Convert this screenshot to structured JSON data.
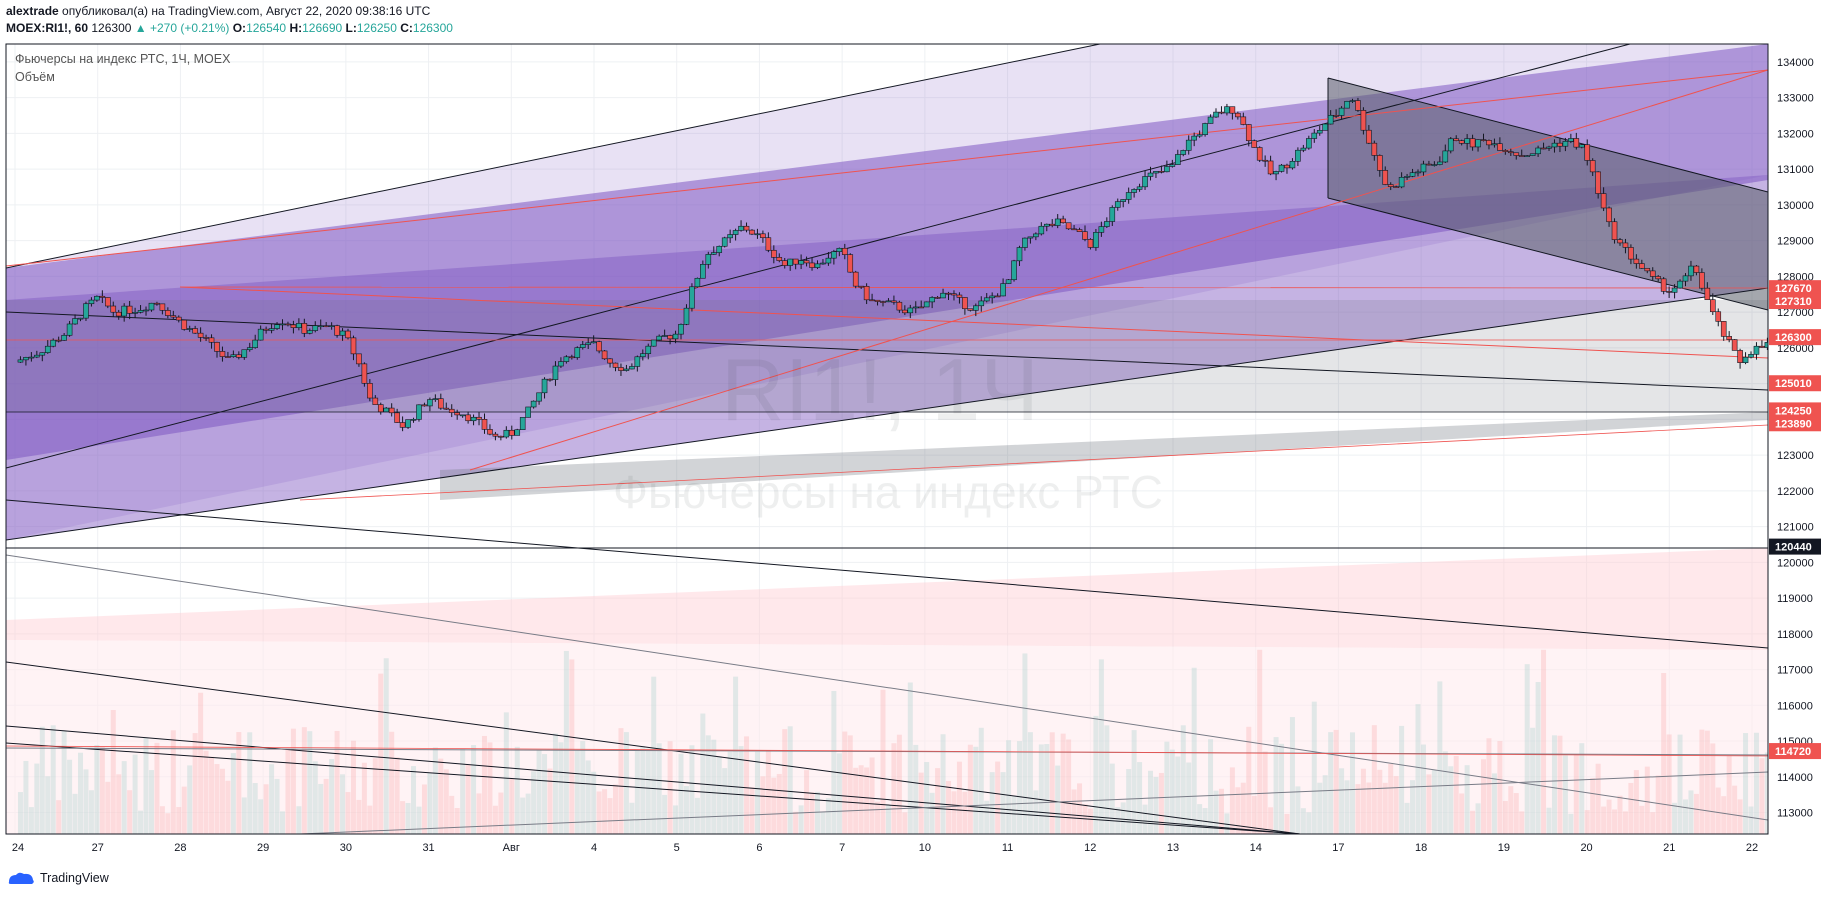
{
  "header": {
    "user": "alextrade",
    "published_text": "опубликовал(а) на TradingView.com, Август 22, 2020 09:38:16 UTC",
    "symbol_interval": "MOEX:RI1!, 60",
    "last": "126300",
    "change": "▲ +270 (+0.21%)",
    "o_label": "O:",
    "o_value": "126540",
    "h_label": "H:",
    "h_value": "126690",
    "l_label": "L:",
    "l_value": "126250",
    "c_label": "C:",
    "c_value": "126300"
  },
  "legend": {
    "series": "Фьючерсы на индекс РТС, 1Ч, MOEX",
    "volume": "Объём"
  },
  "watermark": {
    "symbol": "RI1!, 1Ч",
    "name": "Фьючерсы на индекс РТС"
  },
  "footer": {
    "brand": "TradingView"
  },
  "colors": {
    "up": "#26a69a",
    "down": "#ef5350",
    "purple": "#6f4bbf",
    "price_box": "#ef5350",
    "black_box": "#131722"
  },
  "chart_data": {
    "type": "candlestick",
    "ylim": [
      112400,
      134500
    ],
    "y_ticks": [
      113000,
      114000,
      115000,
      116000,
      117000,
      118000,
      119000,
      120000,
      121000,
      122000,
      123000,
      124000,
      125000,
      126000,
      127000,
      128000,
      129000,
      130000,
      131000,
      132000,
      133000,
      134000
    ],
    "x_ticks": [
      "24",
      "27",
      "28",
      "29",
      "30",
      "31",
      "Авг",
      "4",
      "5",
      "6",
      "7",
      "10",
      "11",
      "12",
      "13",
      "14",
      "17",
      "18",
      "19",
      "20",
      "21",
      "22"
    ],
    "price_labels": [
      {
        "value": 127670,
        "label": "127670",
        "style": "red"
      },
      {
        "value": 127310,
        "label": "127310",
        "style": "red"
      },
      {
        "value": 126300,
        "label": "126300",
        "style": "red"
      },
      {
        "value": 125010,
        "label": "125010",
        "style": "red"
      },
      {
        "value": 124250,
        "label": "124250",
        "style": "red"
      },
      {
        "value": 123890,
        "label": "123890",
        "style": "red"
      },
      {
        "value": 120440,
        "label": "120440",
        "style": "black"
      },
      {
        "value": 114720,
        "label": "114720",
        "style": "red"
      }
    ],
    "close_path": [
      [
        0,
        125600
      ],
      [
        0.3,
        125900
      ],
      [
        0.6,
        126400
      ],
      [
        0.85,
        127100
      ],
      [
        1,
        127400
      ],
      [
        1.2,
        127000
      ],
      [
        1.5,
        127100
      ],
      [
        1.7,
        127300
      ],
      [
        2,
        126700
      ],
      [
        2.3,
        126200
      ],
      [
        2.6,
        125600
      ],
      [
        2.85,
        126100
      ],
      [
        3,
        126500
      ],
      [
        3.2,
        126800
      ],
      [
        3.5,
        126500
      ],
      [
        3.8,
        126600
      ],
      [
        4,
        126300
      ],
      [
        4.15,
        125600
      ],
      [
        4.3,
        124500
      ],
      [
        4.5,
        124200
      ],
      [
        4.7,
        123800
      ],
      [
        4.85,
        124200
      ],
      [
        5,
        124600
      ],
      [
        5.2,
        124300
      ],
      [
        5.4,
        124200
      ],
      [
        5.6,
        123900
      ],
      [
        5.8,
        123500
      ],
      [
        6,
        123600
      ],
      [
        6.2,
        124200
      ],
      [
        6.4,
        125000
      ],
      [
        6.6,
        125700
      ],
      [
        6.85,
        126000
      ],
      [
        7,
        126100
      ],
      [
        7.2,
        125600
      ],
      [
        7.4,
        125400
      ],
      [
        7.6,
        125900
      ],
      [
        7.85,
        126300
      ],
      [
        8,
        126400
      ],
      [
        8.15,
        127400
      ],
      [
        8.35,
        128600
      ],
      [
        8.6,
        129000
      ],
      [
        8.8,
        129400
      ],
      [
        9,
        129100
      ],
      [
        9.15,
        128700
      ],
      [
        9.3,
        128300
      ],
      [
        9.5,
        128500
      ],
      [
        9.7,
        128300
      ],
      [
        9.85,
        128600
      ],
      [
        10,
        128700
      ],
      [
        10.15,
        127800
      ],
      [
        10.35,
        127300
      ],
      [
        10.6,
        127200
      ],
      [
        10.85,
        127000
      ],
      [
        11,
        127200
      ],
      [
        11.2,
        127600
      ],
      [
        11.4,
        127300
      ],
      [
        11.6,
        127100
      ],
      [
        11.85,
        127500
      ],
      [
        12,
        127800
      ],
      [
        12.15,
        128800
      ],
      [
        12.35,
        129300
      ],
      [
        12.6,
        129500
      ],
      [
        12.85,
        129200
      ],
      [
        13,
        128900
      ],
      [
        13.2,
        129600
      ],
      [
        13.45,
        130400
      ],
      [
        13.7,
        130800
      ],
      [
        13.85,
        130900
      ],
      [
        14,
        131100
      ],
      [
        14.15,
        131700
      ],
      [
        14.35,
        132100
      ],
      [
        14.55,
        132600
      ],
      [
        14.75,
        132700
      ],
      [
        15,
        131500
      ],
      [
        15.2,
        130800
      ],
      [
        15.4,
        131200
      ],
      [
        15.6,
        131700
      ],
      [
        15.85,
        132300
      ],
      [
        16,
        132600
      ],
      [
        16.15,
        133100
      ],
      [
        16.3,
        132200
      ],
      [
        16.45,
        131300
      ],
      [
        16.6,
        130400
      ],
      [
        16.75,
        130700
      ],
      [
        16.9,
        130900
      ],
      [
        17,
        131000
      ],
      [
        17.2,
        131200
      ],
      [
        17.4,
        131900
      ],
      [
        17.6,
        131700
      ],
      [
        17.8,
        131800
      ],
      [
        18,
        131600
      ],
      [
        18.2,
        131400
      ],
      [
        18.4,
        131500
      ],
      [
        18.6,
        131700
      ],
      [
        18.8,
        131800
      ],
      [
        18.95,
        131600
      ],
      [
        19.1,
        130700
      ],
      [
        19.25,
        129500
      ],
      [
        19.4,
        128900
      ],
      [
        19.6,
        128400
      ],
      [
        19.8,
        127900
      ],
      [
        20,
        127600
      ],
      [
        20.15,
        127800
      ],
      [
        20.3,
        128300
      ],
      [
        20.45,
        127400
      ],
      [
        20.55,
        126800
      ],
      [
        20.7,
        126200
      ],
      [
        20.85,
        125600
      ],
      [
        20.95,
        125900
      ],
      [
        21.1,
        126000
      ],
      [
        21.3,
        126200
      ],
      [
        21.4,
        126300
      ]
    ]
  }
}
